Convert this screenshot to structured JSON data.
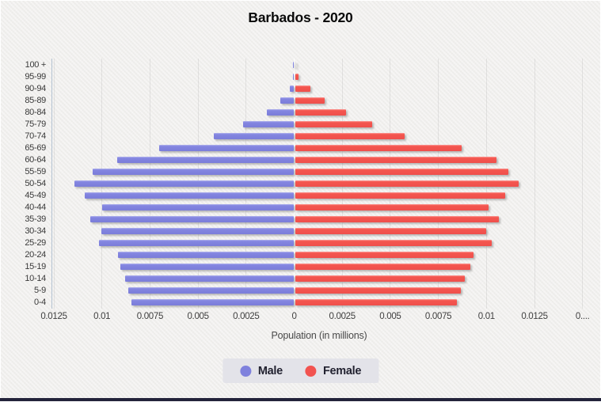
{
  "page": {
    "background_color": "#f1f0ee",
    "footer_bar_color": "#23233a"
  },
  "chart_data": {
    "type": "bar",
    "variant": "population-pyramid",
    "title": "Barbados - 2020",
    "xlabel": "Population (in millions)",
    "grid": true,
    "legend_position": "bottom",
    "xlim": [
      -0.0139,
      0.0155
    ],
    "categories": [
      "100 +",
      "95-99",
      "90-94",
      "85-89",
      "80-84",
      "75-79",
      "70-74",
      "65-69",
      "60-64",
      "55-59",
      "50-54",
      "45-49",
      "40-44",
      "35-39",
      "30-34",
      "25-29",
      "20-24",
      "15-19",
      "10-14",
      "5-9",
      "0-4"
    ],
    "series": [
      {
        "name": "Male",
        "color": "#7f81dd",
        "values": [
          2e-05,
          5e-05,
          0.00022,
          0.0007,
          0.00142,
          0.00264,
          0.00416,
          0.007,
          0.0092,
          0.01047,
          0.0114,
          0.01088,
          0.00995,
          0.01057,
          0.01002,
          0.01014,
          0.00913,
          0.00902,
          0.00878,
          0.0086,
          0.00845
        ]
      },
      {
        "name": "Female",
        "color": "#f25350",
        "values": [
          2e-05,
          0.0002,
          0.0008,
          0.00156,
          0.00266,
          0.004,
          0.0057,
          0.00868,
          0.0105,
          0.01108,
          0.01162,
          0.01092,
          0.01007,
          0.01062,
          0.00996,
          0.01024,
          0.00927,
          0.00914,
          0.00883,
          0.00861,
          0.00843
        ]
      }
    ],
    "x_ticks": [
      {
        "value": -0.0125,
        "label": "0.0125"
      },
      {
        "value": -0.01,
        "label": "0.01"
      },
      {
        "value": -0.0075,
        "label": "0.0075"
      },
      {
        "value": -0.005,
        "label": "0.005"
      },
      {
        "value": -0.0025,
        "label": "0.0025"
      },
      {
        "value": 0,
        "label": "0"
      },
      {
        "value": 0.0025,
        "label": "0.0025"
      },
      {
        "value": 0.005,
        "label": "0.005"
      },
      {
        "value": 0.0075,
        "label": "0.0075"
      },
      {
        "value": 0.01,
        "label": "0.01"
      },
      {
        "value": 0.0125,
        "label": "0.0125"
      },
      {
        "value": 0.015,
        "label": "0...."
      }
    ]
  }
}
